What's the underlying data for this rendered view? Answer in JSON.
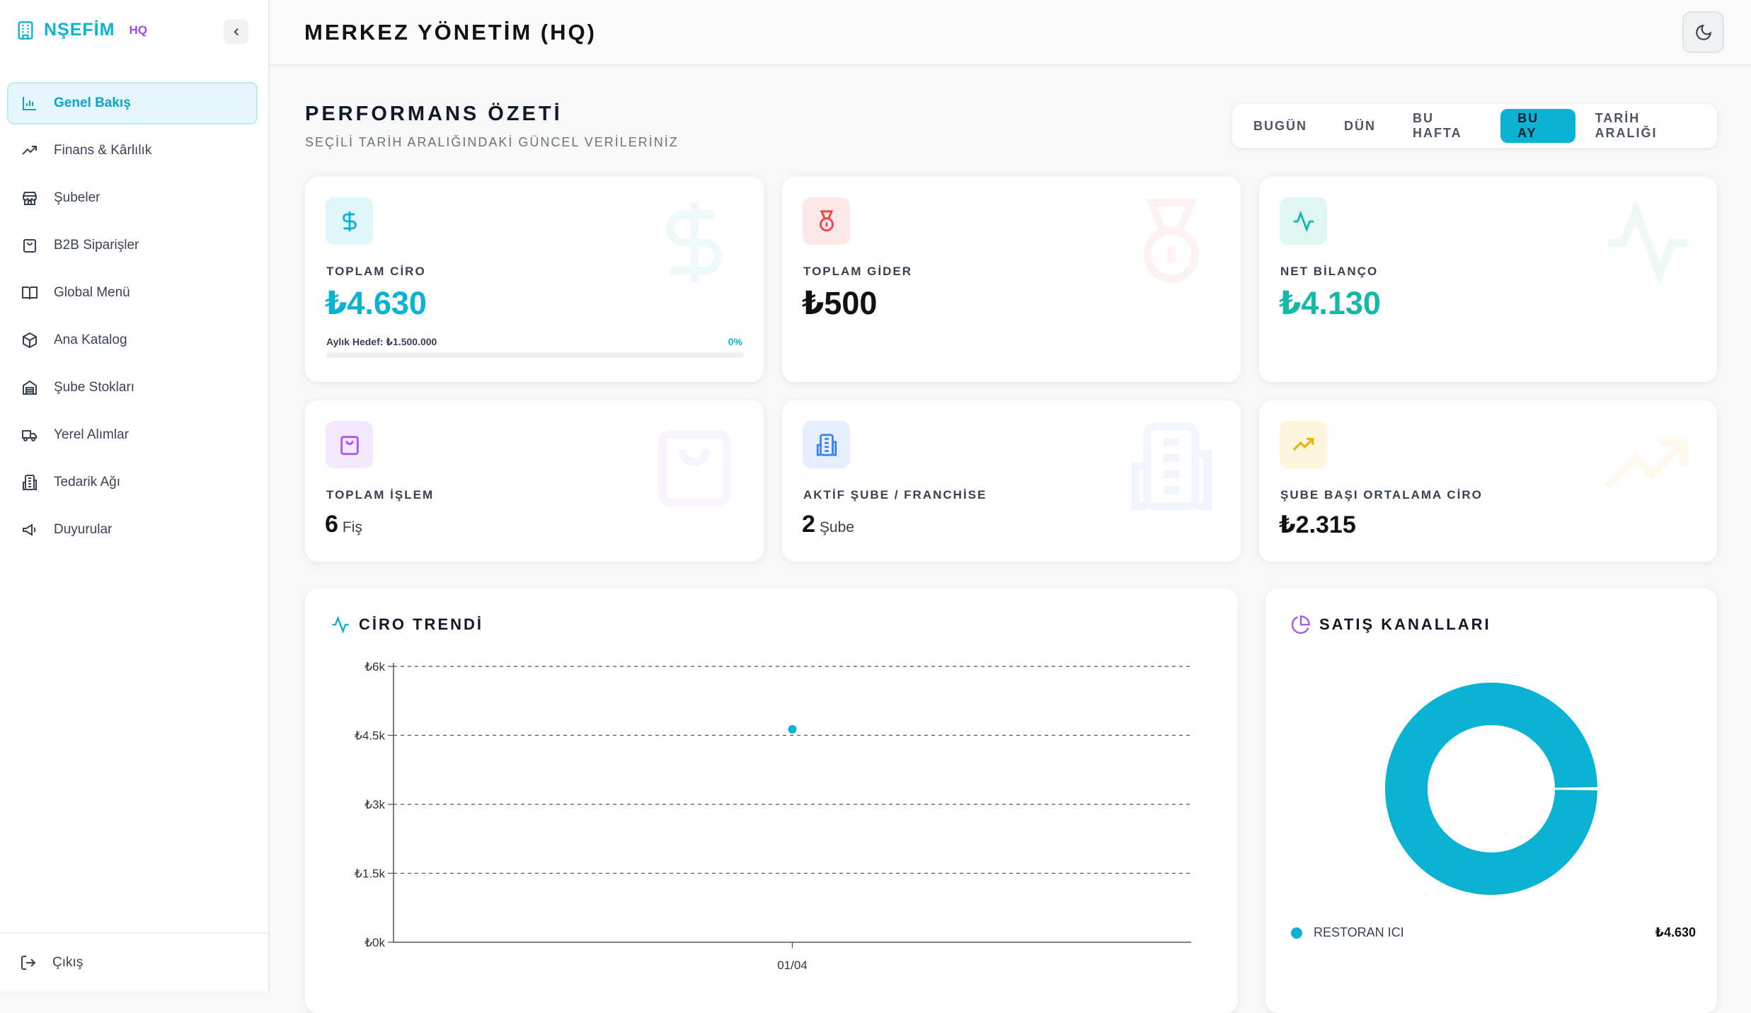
{
  "brand": {
    "name": "NŞEFİM",
    "suffix": "HQ"
  },
  "sidebar": {
    "items": [
      {
        "label": "Genel Bakış",
        "icon": "bar-chart-icon",
        "active": true
      },
      {
        "label": "Finans & Kârlılık",
        "icon": "trending-up-icon"
      },
      {
        "label": "Şubeler",
        "icon": "store-icon"
      },
      {
        "label": "B2B Siparişler",
        "icon": "shopping-bag-icon"
      },
      {
        "label": "Global Menü",
        "icon": "book-open-icon"
      },
      {
        "label": "Ana Katalog",
        "icon": "package-icon"
      },
      {
        "label": "Şube Stokları",
        "icon": "warehouse-icon"
      },
      {
        "label": "Yerel Alımlar",
        "icon": "truck-icon"
      },
      {
        "label": "Tedarik Ağı",
        "icon": "building-icon"
      },
      {
        "label": "Duyurular",
        "icon": "megaphone-icon"
      }
    ],
    "logout": "Çıkış"
  },
  "header": {
    "title": "MERKEZ YÖNETİM (HQ)"
  },
  "summary": {
    "title": "PERFORMANS ÖZETİ",
    "subtitle": "SEÇİLİ TARİH ARALIĞINDAKİ GÜNCEL VERİLERİNİZ",
    "ranges": [
      "BUGÜN",
      "DÜN",
      "BU HAFTA",
      "BU AY",
      "TARİH ARALIĞI"
    ],
    "active_range": "BU AY"
  },
  "cards": {
    "revenue": {
      "label": "TOPLAM CİRO",
      "value": "₺4.630",
      "goal_label": "Aylık Hedef: ₺1.500.000",
      "goal_pct": "0%",
      "goal_fraction": 0
    },
    "expense": {
      "label": "TOPLAM GİDER",
      "value": "₺500"
    },
    "net": {
      "label": "NET BİLANÇO",
      "value": "₺4.130"
    },
    "transactions": {
      "label": "TOPLAM İŞLEM",
      "value": "6",
      "unit": "Fiş"
    },
    "branches": {
      "label": "AKTİF ŞUBE / FRANCHİSE",
      "value": "2",
      "unit": "Şube"
    },
    "avg": {
      "label": "ŞUBE BAŞI ORTALAMA CİRO",
      "value": "₺2.315"
    }
  },
  "colors": {
    "accent": "#0ab3d4",
    "net": "#14b8a6",
    "expense": "#ef4444",
    "violet": "#a855f7",
    "blue": "#3b82f6",
    "amber": "#eab308"
  },
  "trend": {
    "title": "CİRO TRENDİ"
  },
  "chart_data": {
    "type": "line",
    "x": [
      "01/04"
    ],
    "series": [
      {
        "values": [
          4630
        ]
      }
    ],
    "yticks": [
      "₺0k",
      "₺1.5k",
      "₺3k",
      "₺4.5k",
      "₺6k"
    ],
    "ylim": [
      0,
      6000
    ],
    "grid": true
  },
  "channels": {
    "title": "SATIŞ KANALLARI",
    "items": [
      {
        "name": "RESTORAN ICI",
        "value": "₺4.630",
        "share": 1
      }
    ]
  }
}
